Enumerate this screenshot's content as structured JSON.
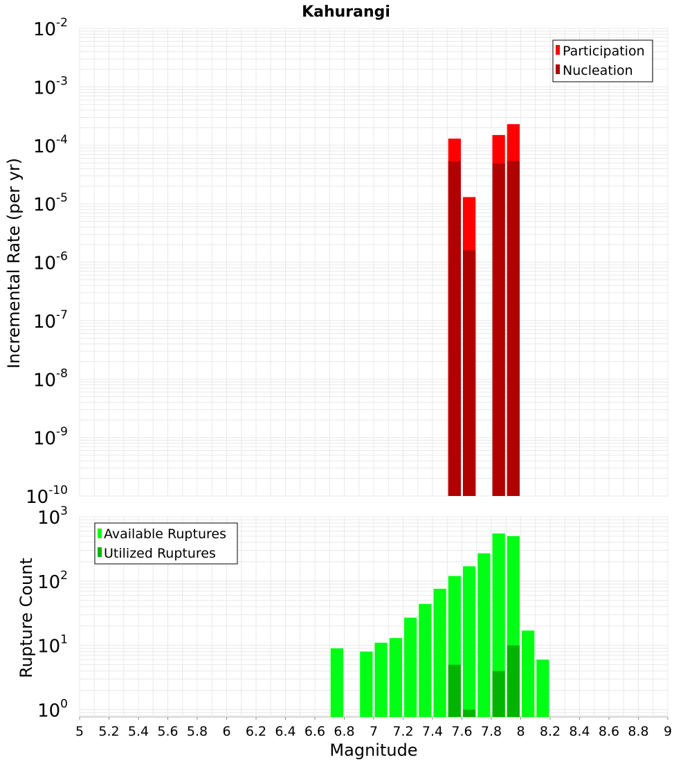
{
  "title": "Kahurangi",
  "colors": {
    "participation": "#ff0000",
    "nucleation": "#b00000",
    "available": "#00ff14",
    "utilized": "#00b400",
    "grid": "#e8e8e8",
    "axis": "#b4b4b4"
  },
  "chart_data": [
    {
      "type": "bar",
      "panel": "rates",
      "title": "Kahurangi",
      "xlabel": "Magnitude",
      "ylabel": "Incremental Rate (per yr)",
      "yscale": "log",
      "ylim": [
        1e-10,
        0.01
      ],
      "xlim": [
        5,
        9
      ],
      "bin_width": 0.1,
      "y_ticks": [
        {
          "base": "10",
          "exp": "-10",
          "value": 1e-10
        },
        {
          "base": "10",
          "exp": "-9",
          "value": 1e-09
        },
        {
          "base": "10",
          "exp": "-8",
          "value": 1e-08
        },
        {
          "base": "10",
          "exp": "-7",
          "value": 1e-07
        },
        {
          "base": "10",
          "exp": "-6",
          "value": 1e-06
        },
        {
          "base": "10",
          "exp": "-5",
          "value": 1e-05
        },
        {
          "base": "10",
          "exp": "-4",
          "value": 0.0001
        },
        {
          "base": "10",
          "exp": "-3",
          "value": 0.001
        },
        {
          "base": "10",
          "exp": "-2",
          "value": 0.01
        }
      ],
      "legend_position": "top-right",
      "series": [
        {
          "name": "Participation",
          "color": "#ff0000",
          "x": [
            7.55,
            7.65,
            7.85,
            7.95
          ],
          "values": [
            0.00013,
            1.3e-05,
            0.00015,
            0.00023
          ]
        },
        {
          "name": "Nucleation",
          "color": "#b00000",
          "x": [
            7.55,
            7.65,
            7.85,
            7.95
          ],
          "values": [
            5.3e-05,
            1.6e-06,
            4.9e-05,
            5.4e-05
          ]
        }
      ]
    },
    {
      "type": "bar",
      "panel": "counts",
      "xlabel": "Magnitude",
      "ylabel": "Rupture Count",
      "yscale": "log",
      "ylim": [
        0.77,
        1000
      ],
      "xlim": [
        5,
        9
      ],
      "bin_width": 0.1,
      "y_ticks": [
        {
          "base": "10",
          "exp": "0",
          "value": 1
        },
        {
          "base": "10",
          "exp": "1",
          "value": 10
        },
        {
          "base": "10",
          "exp": "2",
          "value": 100
        },
        {
          "base": "10",
          "exp": "3",
          "value": 1000
        }
      ],
      "x_ticks": [
        "5",
        "5.2",
        "5.4",
        "5.6",
        "5.8",
        "6",
        "6.2",
        "6.4",
        "6.6",
        "6.8",
        "7",
        "7.2",
        "7.4",
        "7.6",
        "7.8",
        "8",
        "8.2",
        "8.4",
        "8.6",
        "8.8",
        "9"
      ],
      "legend_position": "top-left",
      "series": [
        {
          "name": "Available Ruptures",
          "color": "#00ff14",
          "x": [
            6.75,
            6.95,
            7.05,
            7.15,
            7.25,
            7.35,
            7.45,
            7.55,
            7.65,
            7.75,
            7.85,
            7.95,
            8.05,
            8.15
          ],
          "values": [
            9,
            8,
            11,
            13,
            27,
            44,
            76,
            120,
            170,
            270,
            550,
            500,
            17,
            6
          ]
        },
        {
          "name": "Utilized Ruptures",
          "color": "#00b400",
          "x": [
            7.55,
            7.65,
            7.85,
            7.95
          ],
          "values": [
            5,
            1,
            4,
            10
          ]
        }
      ]
    }
  ]
}
